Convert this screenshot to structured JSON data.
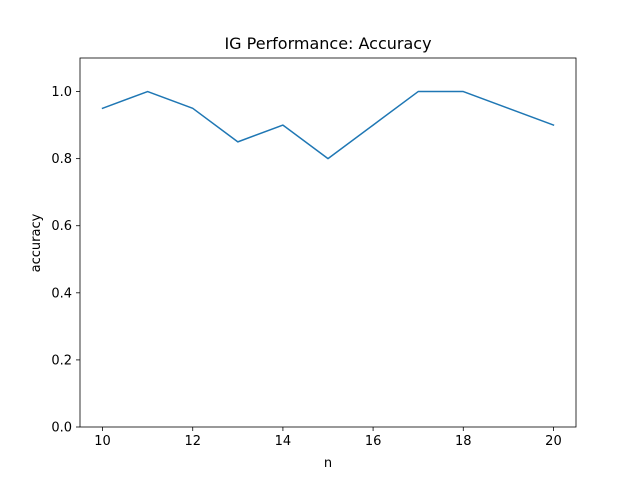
{
  "chart_data": {
    "type": "line",
    "title": "IG Performance: Accuracy",
    "xlabel": "n",
    "ylabel": "accuracy",
    "xlim": [
      9.5,
      20.5
    ],
    "ylim": [
      0.0,
      1.1
    ],
    "xticks": [
      10,
      12,
      14,
      16,
      18,
      20
    ],
    "yticks": [
      0.0,
      0.2,
      0.4,
      0.6,
      0.8,
      1.0
    ],
    "ytick_labels": [
      "0.0",
      "0.2",
      "0.4",
      "0.6",
      "0.8",
      "1.0"
    ],
    "grid": false,
    "legend": false,
    "series": [
      {
        "color": "#1f77b4",
        "x": [
          10,
          11,
          12,
          13,
          14,
          15,
          16,
          17,
          18,
          19,
          20
        ],
        "y": [
          0.95,
          1.0,
          0.95,
          0.85,
          0.9,
          0.8,
          0.9,
          1.0,
          1.0,
          0.95,
          0.9
        ]
      }
    ]
  }
}
